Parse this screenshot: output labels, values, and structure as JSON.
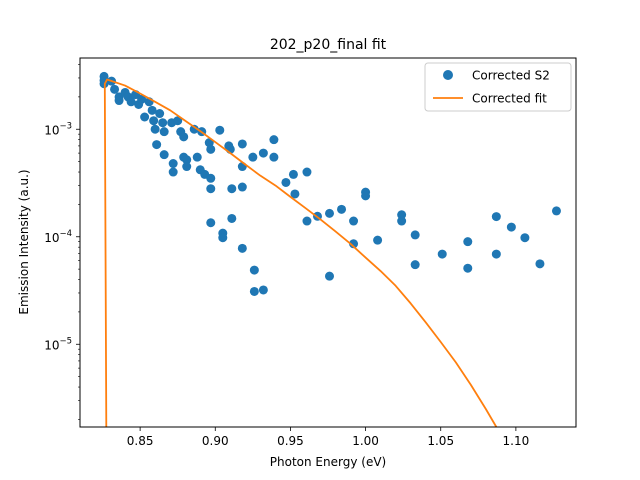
{
  "chart_data": {
    "type": "scatter",
    "title": "202_p20_final fit",
    "xlabel": "Photon Energy (eV)",
    "ylabel": "Emission Intensity (a.u.)",
    "xlim": [
      0.81,
      1.14
    ],
    "ylim": [
      1.7e-06,
      0.0046
    ],
    "yscale": "log",
    "x_ticks": [
      0.85,
      0.9,
      0.95,
      1.0,
      1.05,
      1.1
    ],
    "x_tick_labels": [
      "0.85",
      "0.90",
      "0.95",
      "1.00",
      "1.05",
      "1.10"
    ],
    "y_ticks": [
      1e-05,
      0.0001,
      0.001
    ],
    "y_tick_labels": [
      "10−5",
      "10−4",
      "10−3"
    ],
    "grid": false,
    "legend": {
      "position": "top-right",
      "entries": [
        "Corrected S2",
        "Corrected fit"
      ]
    },
    "series": [
      {
        "name": "Corrected S2",
        "kind": "scatter",
        "color": "#1f77b4",
        "points": [
          [
            0.826,
            0.0031
          ],
          [
            0.826,
            0.00285
          ],
          [
            0.826,
            0.00265
          ],
          [
            0.831,
            0.0028
          ],
          [
            0.833,
            0.00235
          ],
          [
            0.836,
            0.002
          ],
          [
            0.836,
            0.00185
          ],
          [
            0.84,
            0.0022
          ],
          [
            0.842,
            0.002
          ],
          [
            0.844,
            0.0018
          ],
          [
            0.847,
            0.0021
          ],
          [
            0.849,
            0.0017
          ],
          [
            0.851,
            0.0019
          ],
          [
            0.853,
            0.0013
          ],
          [
            0.856,
            0.0018
          ],
          [
            0.858,
            0.0015
          ],
          [
            0.859,
            0.0012
          ],
          [
            0.86,
            0.001
          ],
          [
            0.861,
            0.00072
          ],
          [
            0.863,
            0.0014
          ],
          [
            0.865,
            0.00115
          ],
          [
            0.866,
            0.00095
          ],
          [
            0.866,
            0.00058
          ],
          [
            0.871,
            0.00115
          ],
          [
            0.872,
            0.00048
          ],
          [
            0.872,
            0.0004
          ],
          [
            0.875,
            0.0012
          ],
          [
            0.877,
            0.00095
          ],
          [
            0.879,
            0.00085
          ],
          [
            0.879,
            0.00055
          ],
          [
            0.881,
            0.00052
          ],
          [
            0.881,
            0.00045
          ],
          [
            0.886,
            0.001
          ],
          [
            0.888,
            0.00055
          ],
          [
            0.89,
            0.00042
          ],
          [
            0.891,
            0.00095
          ],
          [
            0.893,
            0.00038
          ],
          [
            0.896,
            0.00075
          ],
          [
            0.897,
            0.00065
          ],
          [
            0.897,
            0.00035
          ],
          [
            0.897,
            0.00028
          ],
          [
            0.897,
            0.000135
          ],
          [
            0.903,
            0.00098
          ],
          [
            0.905,
            0.000108
          ],
          [
            0.905,
            9.8e-05
          ],
          [
            0.909,
            0.0007
          ],
          [
            0.91,
            0.00065
          ],
          [
            0.911,
            0.000148
          ],
          [
            0.911,
            0.00028
          ],
          [
            0.918,
            0.00073
          ],
          [
            0.918,
            0.00045
          ],
          [
            0.918,
            0.00029
          ],
          [
            0.918,
            7.8e-05
          ],
          [
            0.925,
            0.00055
          ],
          [
            0.926,
            4.9e-05
          ],
          [
            0.926,
            3.1e-05
          ],
          [
            0.932,
            0.0006
          ],
          [
            0.932,
            3.2e-05
          ],
          [
            0.939,
            0.0008
          ],
          [
            0.939,
            0.00055
          ],
          [
            0.947,
            0.00032
          ],
          [
            0.952,
            0.00038
          ],
          [
            0.953,
            0.00025
          ],
          [
            0.961,
            0.0004
          ],
          [
            0.961,
            0.00014
          ],
          [
            0.968,
            0.000155
          ],
          [
            0.976,
            0.000165
          ],
          [
            0.976,
            4.3e-05
          ],
          [
            0.984,
            0.00018
          ],
          [
            0.992,
            0.00014
          ],
          [
            0.992,
            8.6e-05
          ],
          [
            1.0,
            0.00026
          ],
          [
            1.0,
            0.00024
          ],
          [
            1.008,
            9.3e-05
          ],
          [
            1.024,
            0.00016
          ],
          [
            1.024,
            0.00014
          ],
          [
            1.033,
            0.000104
          ],
          [
            1.033,
            5.5e-05
          ],
          [
            1.051,
            6.9e-05
          ],
          [
            1.068,
            9e-05
          ],
          [
            1.068,
            5.1e-05
          ],
          [
            1.087,
            0.000154
          ],
          [
            1.087,
            6.9e-05
          ],
          [
            1.097,
            0.000123
          ],
          [
            1.106,
            9.8e-05
          ],
          [
            1.116,
            5.6e-05
          ],
          [
            1.127,
            0.000174
          ]
        ]
      },
      {
        "name": "Corrected fit",
        "kind": "line",
        "color": "#ff7f0e",
        "points": [
          [
            0.8275,
            1.7e-06
          ],
          [
            0.8265,
            0.00265
          ],
          [
            0.828,
            0.0029
          ],
          [
            0.84,
            0.00255
          ],
          [
            0.85,
            0.00215
          ],
          [
            0.86,
            0.0018
          ],
          [
            0.87,
            0.0015
          ],
          [
            0.88,
            0.0012
          ],
          [
            0.89,
            0.00096
          ],
          [
            0.9,
            0.00076
          ],
          [
            0.91,
            0.0006
          ],
          [
            0.92,
            0.00047
          ],
          [
            0.93,
            0.00037
          ],
          [
            0.94,
            0.0003
          ],
          [
            0.95,
            0.000235
          ],
          [
            0.96,
            0.000185
          ],
          [
            0.97,
            0.000145
          ],
          [
            0.98,
            0.000112
          ],
          [
            0.99,
            8.6e-05
          ],
          [
            1.0,
            6.4e-05
          ],
          [
            1.01,
            4.8e-05
          ],
          [
            1.02,
            3.5e-05
          ],
          [
            1.03,
            2.4e-05
          ],
          [
            1.04,
            1.6e-05
          ],
          [
            1.05,
            1.05e-05
          ],
          [
            1.06,
            6.8e-06
          ],
          [
            1.07,
            4.2e-06
          ],
          [
            1.08,
            2.5e-06
          ],
          [
            1.087,
            1.7e-06
          ]
        ]
      }
    ]
  }
}
